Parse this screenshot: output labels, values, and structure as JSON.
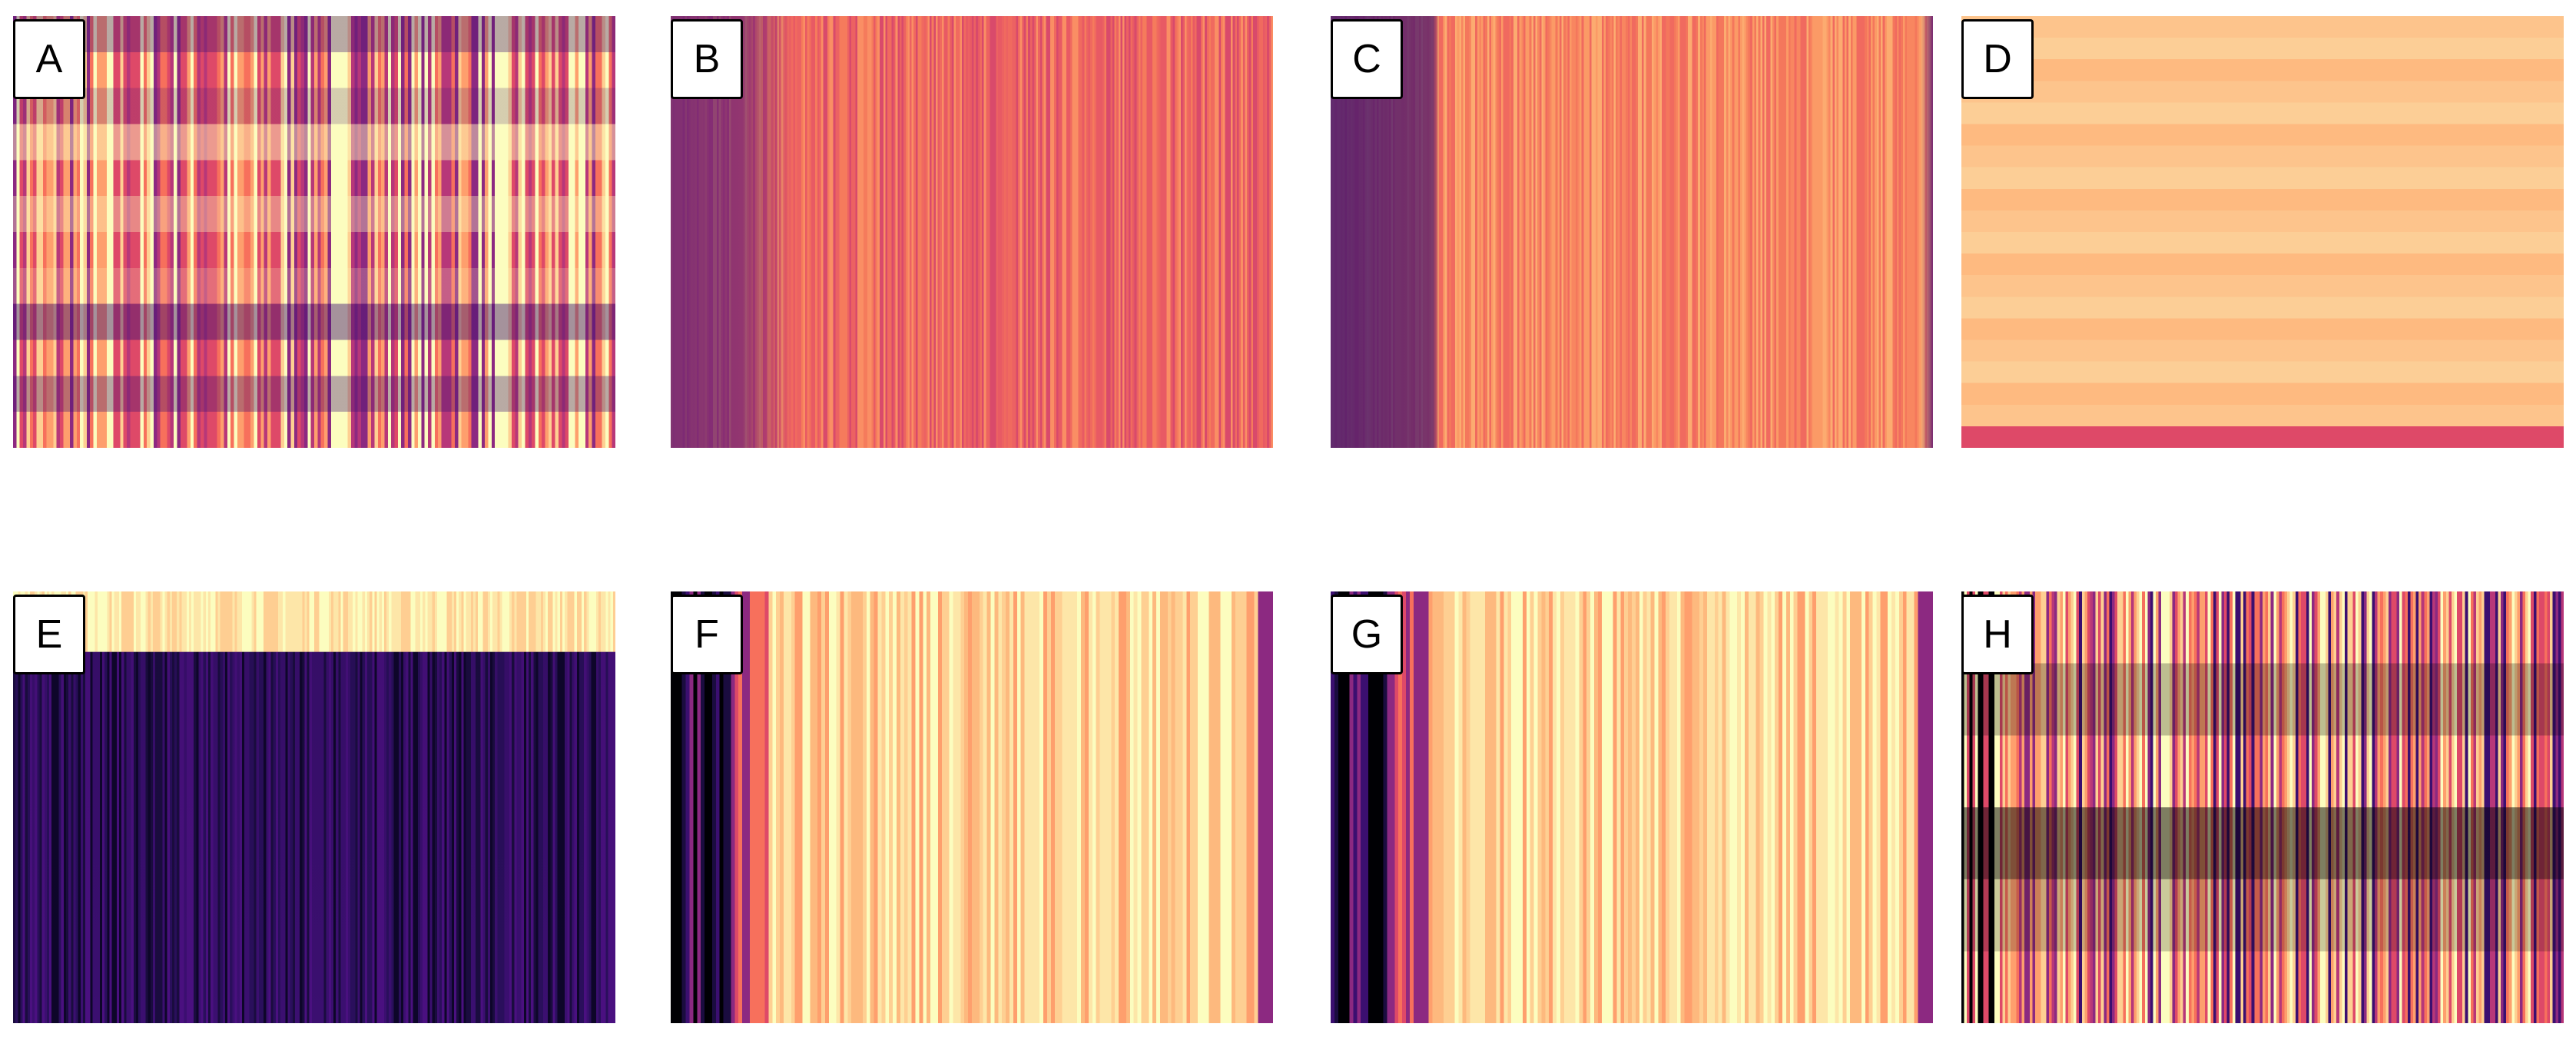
{
  "panels": [
    {
      "label": "A"
    },
    {
      "label": "B"
    },
    {
      "label": "C"
    },
    {
      "label": "D"
    },
    {
      "label": "E"
    },
    {
      "label": "F"
    },
    {
      "label": "G"
    },
    {
      "label": "H"
    }
  ]
}
